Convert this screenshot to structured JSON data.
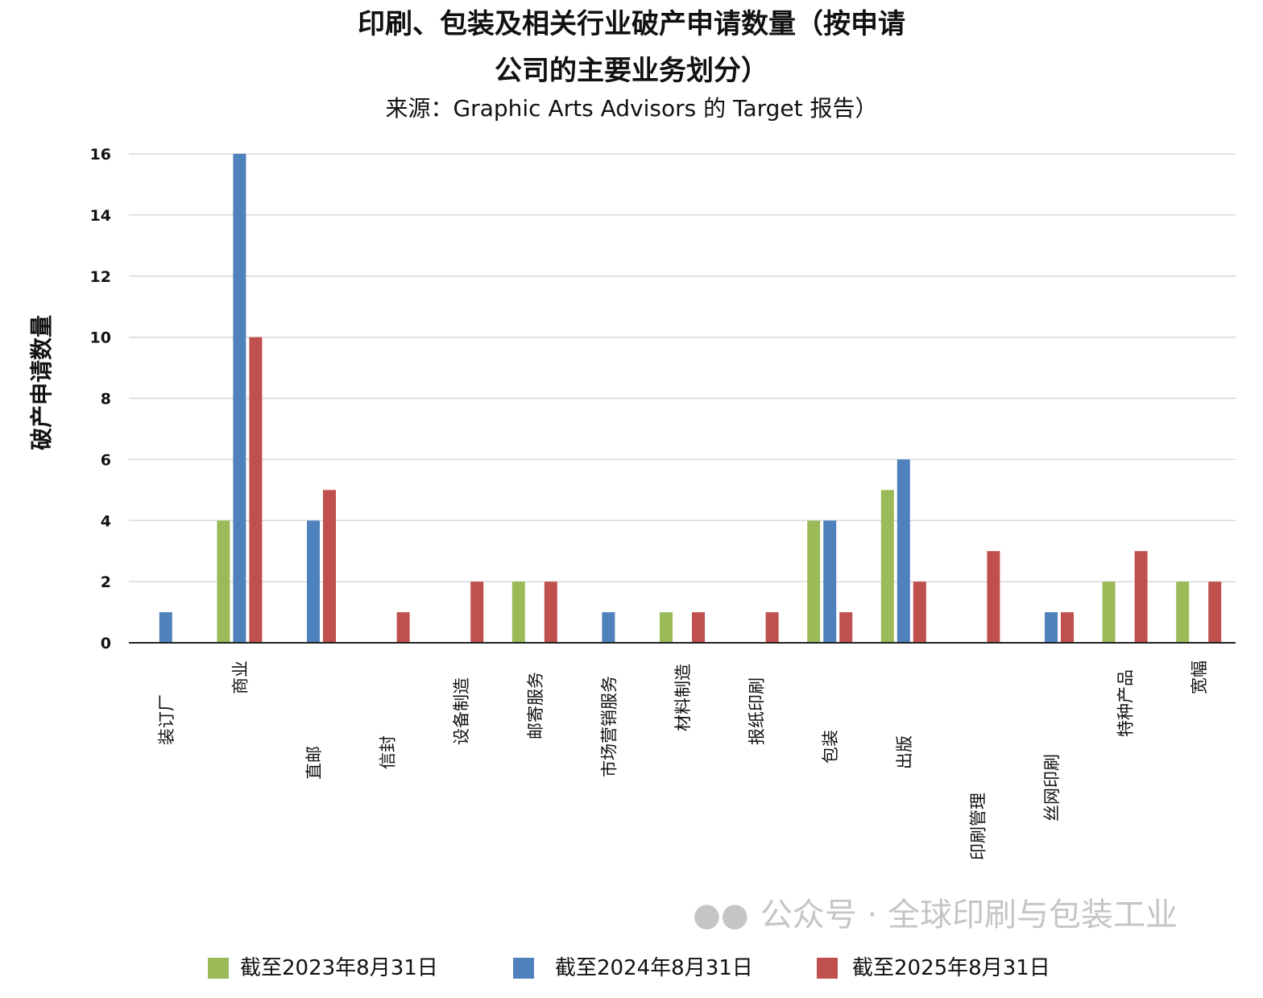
{
  "chart_data": {
    "type": "bar",
    "title_line1": "印刷、包装及相关行业破产申请数量（按申请",
    "title_line2": "公司的主要业务划分）",
    "subtitle": "来源：Graphic Arts Advisors 的 Target 报告）",
    "xlabel": "",
    "ylabel": "破产申请数量",
    "ylim": [
      0,
      16
    ],
    "yticks": [
      0,
      2,
      4,
      6,
      8,
      10,
      12,
      14,
      16
    ],
    "grid": true,
    "legend_position": "bottom",
    "categories": [
      "装订厂",
      "商业",
      "直邮",
      "信封",
      "设备制造",
      "邮寄服务",
      "市场营销服务",
      "材料制造",
      "报纸印刷",
      "包装",
      "出版",
      "印刷管理",
      "丝网印刷",
      "特种产品",
      "宽幅"
    ],
    "series": [
      {
        "name": "截至2023年8月31日",
        "color": "#9BBB59",
        "values": [
          0,
          4,
          0,
          0,
          0,
          2,
          0,
          1,
          0,
          4,
          5,
          0,
          0,
          2,
          2
        ]
      },
      {
        "name": "截至2024年8月31日",
        "color": "#4F81BD",
        "values": [
          1,
          16,
          4,
          0,
          0,
          0,
          1,
          0,
          0,
          4,
          6,
          0,
          1,
          0,
          0
        ]
      },
      {
        "name": "截至2025年8月31日",
        "color": "#C0504D",
        "values": [
          0,
          10,
          5,
          1,
          2,
          2,
          0,
          1,
          1,
          1,
          2,
          3,
          1,
          3,
          2
        ]
      }
    ]
  },
  "watermark": "公众号 · 全球印刷与包装工业"
}
